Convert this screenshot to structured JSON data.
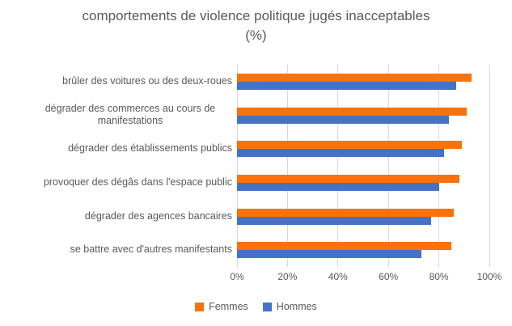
{
  "title": {
    "line1": "comportements de violence politique jugés inacceptables",
    "line2": "(%)"
  },
  "chart_data": {
    "type": "bar",
    "orientation": "horizontal",
    "title": "comportements de violence politique jugés inacceptables (%)",
    "categories": [
      "brûler des voitures ou des deux-roues",
      "dégrader des commerces au cours de manifestations",
      "dégrader des établissements publics",
      "provoquer des dégâs dans l'espace public",
      "dégrader des agences bancaires",
      "se battre avec d'autres manifestants"
    ],
    "series": [
      {
        "name": "Femmes",
        "color": "#f9720b",
        "values": [
          93,
          91,
          89,
          88,
          86,
          85
        ]
      },
      {
        "name": "Hommes",
        "color": "#4472c4",
        "values": [
          87,
          84,
          82,
          80,
          77,
          73
        ]
      }
    ],
    "xlabel": "",
    "ylabel": "",
    "xlim": [
      0,
      100
    ],
    "x_ticks": [
      "0%",
      "20%",
      "40%",
      "60%",
      "80%",
      "100%"
    ],
    "grid": true,
    "gridline_color": "#d9d9d9",
    "text_color": "#595959",
    "legend_position": "bottom"
  }
}
